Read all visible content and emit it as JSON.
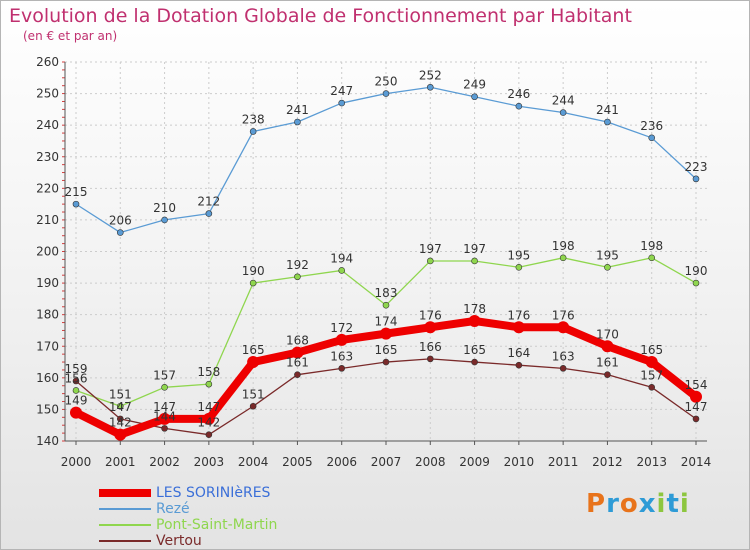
{
  "title": "Evolution de la Dotation Globale de Fonctionnement par Habitant",
  "subtitle": "(en € et par an)",
  "logo": {
    "text": "Proxiti",
    "letter_colors": [
      "#e8731b",
      "#2e9bd6",
      "#e8731b",
      "#2e9bd6",
      "#8dc63f",
      "#2e9bd6",
      "#8dc63f"
    ]
  },
  "chart_data": {
    "type": "line",
    "title": "Evolution de la Dotation Globale de Fonctionnement par Habitant",
    "subtitle": "(en € et par an)",
    "xlabel": "",
    "ylabel": "",
    "x": [
      "2000",
      "2001",
      "2002",
      "2003",
      "2004",
      "2005",
      "2006",
      "2007",
      "2008",
      "2009",
      "2010",
      "2011",
      "2012",
      "2013",
      "2014"
    ],
    "yticks": [
      "140",
      "150",
      "160",
      "170",
      "180",
      "190",
      "200",
      "210",
      "220",
      "230",
      "240",
      "250",
      "260"
    ],
    "ylim": [
      140,
      260
    ],
    "grid": "horizontal dashed",
    "legend_position": "bottom-left",
    "series": [
      {
        "name": "LES SORINIèRES",
        "color": "#ee0000",
        "style": "thick",
        "values": [
          149,
          142,
          147,
          147,
          165,
          168,
          172,
          174,
          176,
          178,
          176,
          176,
          170,
          165,
          154
        ],
        "labels": [
          "149",
          "142",
          "147",
          "147",
          "165",
          "168",
          "172",
          "174",
          "176",
          "178",
          "176",
          "176",
          "170",
          "165",
          "154"
        ]
      },
      {
        "name": "Rezé",
        "color": "#5a9bd4",
        "style": "thin",
        "values": [
          215,
          206,
          210,
          212,
          238,
          241,
          247,
          250,
          252,
          249,
          246,
          244,
          241,
          236,
          223
        ],
        "labels": [
          "215",
          "206",
          "210",
          "212",
          "238",
          "241",
          "247",
          "250",
          "252",
          "249",
          "246",
          "244",
          "241",
          "236",
          "223"
        ]
      },
      {
        "name": "Pont-Saint-Martin",
        "color": "#8fd64e",
        "style": "thin",
        "values": [
          156,
          151,
          157,
          158,
          190,
          192,
          194,
          183,
          197,
          197,
          195,
          198,
          195,
          198,
          190
        ],
        "labels": [
          "156",
          "151",
          "157",
          "158",
          "190",
          "192",
          "194",
          "183",
          "197",
          "197",
          "195",
          "198",
          "195",
          "198",
          "190"
        ]
      },
      {
        "name": "Vertou",
        "color": "#7a2a2a",
        "style": "thin",
        "values": [
          159,
          147,
          144,
          142,
          151,
          161,
          163,
          165,
          166,
          165,
          164,
          163,
          161,
          157,
          147
        ],
        "labels": [
          "159",
          "147",
          "144",
          "142",
          "151",
          "161",
          "163",
          "165",
          "166",
          "165",
          "164",
          "163",
          "161",
          "157",
          "147"
        ]
      }
    ]
  }
}
